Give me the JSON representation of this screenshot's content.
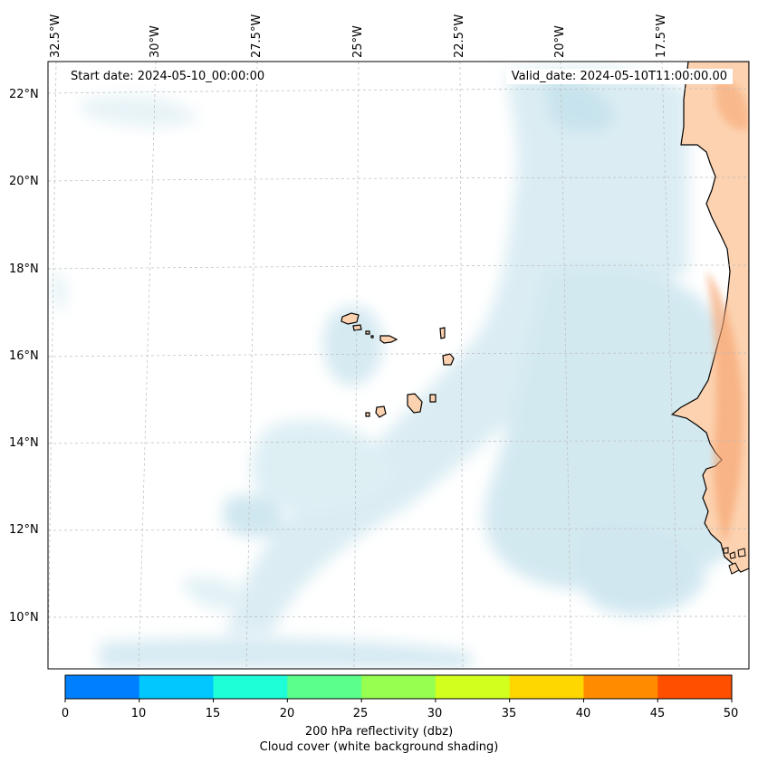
{
  "header": {
    "start_date": "Start date: 2024-05-10_00:00:00",
    "valid_date": "Valid_date: 2024-05-10T11:00:00.00"
  },
  "axes": {
    "lon_labels": [
      "32.5°W",
      "30°W",
      "27.5°W",
      "25°W",
      "22.5°W",
      "20°W",
      "17.5°W"
    ],
    "lat_labels": [
      "22°N",
      "20°N",
      "18°N",
      "16°N",
      "14°N",
      "12°N",
      "10°N"
    ]
  },
  "colorbar": {
    "ticks": [
      "0",
      "10",
      "15",
      "20",
      "25",
      "30",
      "35",
      "40",
      "45",
      "50"
    ],
    "colors": [
      "#0080ff",
      "#00c8ff",
      "#1effd8",
      "#5aff8c",
      "#96ff50",
      "#d2ff1e",
      "#ffd700",
      "#ff8c00",
      "#ff5000"
    ],
    "label": "200 hPa reflectivity (dbz)",
    "sublabel": "Cloud cover (white background shading)"
  },
  "colors": {
    "cloud": "#b9dde8",
    "land": "#fcd2b0",
    "land_hot": "#f6a470",
    "coast": "#000000"
  }
}
